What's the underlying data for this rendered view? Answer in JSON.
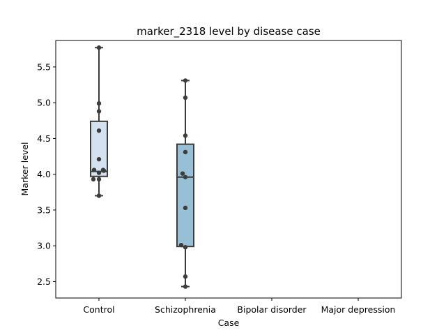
{
  "chart_data": {
    "type": "box",
    "title": "marker_2318 level by disease case",
    "xlabel": "Case",
    "ylabel": "Marker level",
    "ylim": [
      2.27,
      5.87
    ],
    "yticks": [
      2.5,
      3.0,
      3.5,
      4.0,
      4.5,
      5.0,
      5.5
    ],
    "ytick_labels": [
      "2.5",
      "3.0",
      "3.5",
      "4.0",
      "4.5",
      "5.0",
      "5.5"
    ],
    "categories": [
      "Control",
      "Schizophrenia",
      "Bipolar disorder",
      "Major depression"
    ],
    "grid": false,
    "legend": "none",
    "box_stats": [
      {
        "category": "Control",
        "whisker_low": 3.7,
        "q1": 3.97,
        "median": 4.04,
        "q3": 4.74,
        "whisker_high": 5.77,
        "color": "#d4e2ef"
      },
      {
        "category": "Schizophrenia",
        "whisker_low": 2.43,
        "q1": 2.99,
        "median": 3.96,
        "q3": 4.42,
        "whisker_high": 5.31,
        "color": "#97bfd6"
      },
      {
        "category": "Bipolar disorder",
        "whisker_low": null,
        "q1": null,
        "median": null,
        "q3": null,
        "whisker_high": null,
        "color": "#4a8fc0"
      },
      {
        "category": "Major depression",
        "whisker_low": null,
        "q1": null,
        "median": null,
        "q3": null,
        "whisker_high": null,
        "color": "#1b5a9e"
      }
    ],
    "points": [
      {
        "category": "Control",
        "values": [
          5.77,
          4.99,
          4.88,
          4.61,
          4.21,
          4.06,
          4.05,
          4.02,
          4.06,
          3.93,
          3.93,
          3.7
        ],
        "offsets": [
          0,
          0,
          0,
          0,
          0,
          -7,
          7,
          0,
          6,
          -8,
          0,
          0
        ]
      },
      {
        "category": "Schizophrenia",
        "values": [
          5.31,
          5.07,
          4.54,
          4.31,
          4.01,
          3.96,
          3.53,
          3.01,
          2.98,
          2.57,
          2.43
        ],
        "offsets": [
          0,
          0,
          0,
          0,
          -4,
          0,
          0,
          -6,
          0,
          0,
          0
        ]
      }
    ],
    "point_color": "#3d3d3d"
  }
}
